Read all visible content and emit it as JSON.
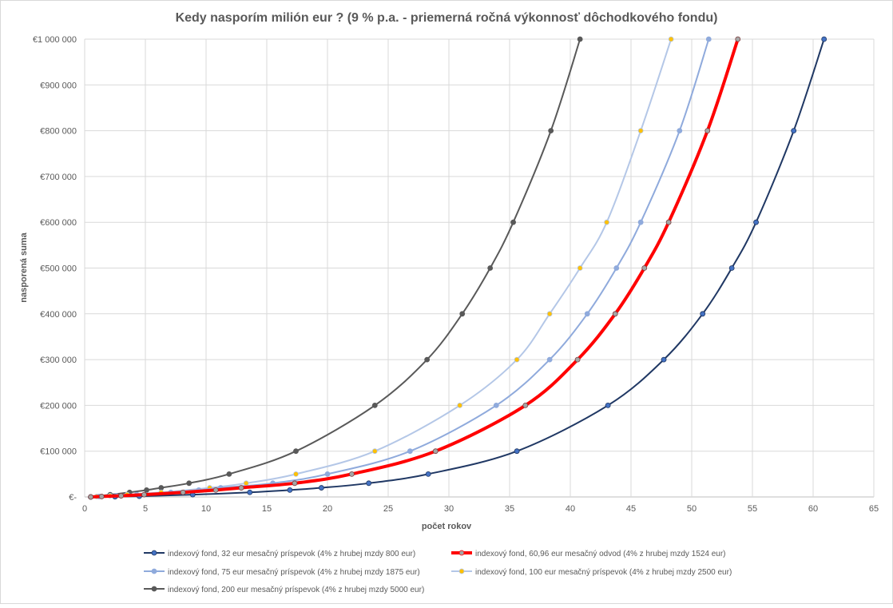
{
  "chart_data": {
    "type": "scatter",
    "title": "Kedy nasporím milión eur ? (9 % p.a. - priemerná ročná výkonnosť dôchodkového fondu)",
    "xlabel": "počet rokov",
    "ylabel": "nasporená suma",
    "xlim": [
      0,
      65
    ],
    "ylim": [
      0,
      1000000
    ],
    "x_ticks": [
      "0",
      "5",
      "10",
      "15",
      "20",
      "25",
      "30",
      "35",
      "40",
      "45",
      "50",
      "55",
      "60",
      "65"
    ],
    "y_ticks": [
      "€-",
      "€100 000",
      "€200 000",
      "€300 000",
      "€400 000",
      "€500 000",
      "€600 000",
      "€700 000",
      "€800 000",
      "€900 000",
      "€1 000 000"
    ],
    "grid": true,
    "legend_position": "bottom",
    "series": [
      {
        "name": "indexový fond, 32 eur mesačný príspevok (4% z hrubej mzdy 800 eur)",
        "color": "#203864",
        "marker": "#4472C4",
        "width": 2,
        "points": [
          [
            0.5,
            0
          ],
          [
            2.5,
            500
          ],
          [
            4.5,
            1500
          ],
          [
            8.9,
            5000
          ],
          [
            13.6,
            10000
          ],
          [
            16.9,
            15000
          ],
          [
            19.5,
            20000
          ],
          [
            23.4,
            30000
          ],
          [
            28.3,
            50000
          ],
          [
            35.6,
            100000
          ],
          [
            43.1,
            200000
          ],
          [
            47.7,
            300000
          ],
          [
            50.9,
            400000
          ],
          [
            53.3,
            500000
          ],
          [
            55.3,
            600000
          ],
          [
            58.4,
            800000
          ],
          [
            60.9,
            1000000
          ]
        ]
      },
      {
        "name": "indexový fond, 60,96 eur mesačný odvod (4% z hrubej mzdy 1524 eur)",
        "color": "#FF0000",
        "marker": "#A5A5A5",
        "width": 4,
        "points": [
          [
            0.5,
            0
          ],
          [
            1.4,
            1000
          ],
          [
            3.0,
            2500
          ],
          [
            4.9,
            5000
          ],
          [
            8.1,
            10000
          ],
          [
            10.8,
            15000
          ],
          [
            12.9,
            20000
          ],
          [
            17.3,
            30000
          ],
          [
            22.0,
            50000
          ],
          [
            28.9,
            100000
          ],
          [
            36.3,
            200000
          ],
          [
            40.6,
            300000
          ],
          [
            43.7,
            400000
          ],
          [
            46.1,
            500000
          ],
          [
            48.1,
            600000
          ],
          [
            51.3,
            800000
          ],
          [
            53.8,
            1000000
          ]
        ]
      },
      {
        "name": "indexový fond, 75 eur mesačný príspevok (4% z hrubej mzdy 1875 eur)",
        "color": "#8FAADC",
        "marker": "#8FAADC",
        "width": 2,
        "points": [
          [
            0.5,
            0
          ],
          [
            1.2,
            1000
          ],
          [
            2.6,
            2500
          ],
          [
            4.3,
            5000
          ],
          [
            7.1,
            10000
          ],
          [
            9.4,
            15000
          ],
          [
            11.2,
            20000
          ],
          [
            15.5,
            30000
          ],
          [
            20.0,
            50000
          ],
          [
            26.8,
            100000
          ],
          [
            33.9,
            200000
          ],
          [
            38.3,
            300000
          ],
          [
            41.4,
            400000
          ],
          [
            43.8,
            500000
          ],
          [
            45.8,
            600000
          ],
          [
            49.0,
            800000
          ],
          [
            51.4,
            1000000
          ]
        ]
      },
      {
        "name": "indexový fond, 100 eur mesačný príspevok (4% z hrubej mzdy 2500 eur)",
        "color": "#B4C7E7",
        "marker": "#FFC000",
        "width": 2,
        "points": [
          [
            0.5,
            0
          ],
          [
            1.0,
            1000
          ],
          [
            2.1,
            2500
          ],
          [
            3.5,
            5000
          ],
          [
            6.3,
            10000
          ],
          [
            10.3,
            20000
          ],
          [
            13.3,
            30000
          ],
          [
            17.4,
            50000
          ],
          [
            23.9,
            100000
          ],
          [
            30.9,
            200000
          ],
          [
            35.6,
            300000
          ],
          [
            38.3,
            400000
          ],
          [
            40.8,
            500000
          ],
          [
            43.0,
            600000
          ],
          [
            45.8,
            800000
          ],
          [
            48.3,
            1000000
          ]
        ]
      },
      {
        "name": "indexový fond, 200 eur mesačný príspevok (4% z hrubej mzdy 5000 eur)",
        "color": "#595959",
        "marker": "#595959",
        "width": 2,
        "points": [
          [
            0.5,
            0
          ],
          [
            2.1,
            5000
          ],
          [
            3.7,
            10000
          ],
          [
            5.1,
            15000
          ],
          [
            6.3,
            20000
          ],
          [
            8.6,
            30000
          ],
          [
            11.9,
            50000
          ],
          [
            17.4,
            100000
          ],
          [
            23.9,
            200000
          ],
          [
            28.2,
            300000
          ],
          [
            31.1,
            400000
          ],
          [
            33.4,
            500000
          ],
          [
            35.3,
            600000
          ],
          [
            38.4,
            800000
          ],
          [
            40.8,
            1000000
          ]
        ]
      }
    ]
  }
}
